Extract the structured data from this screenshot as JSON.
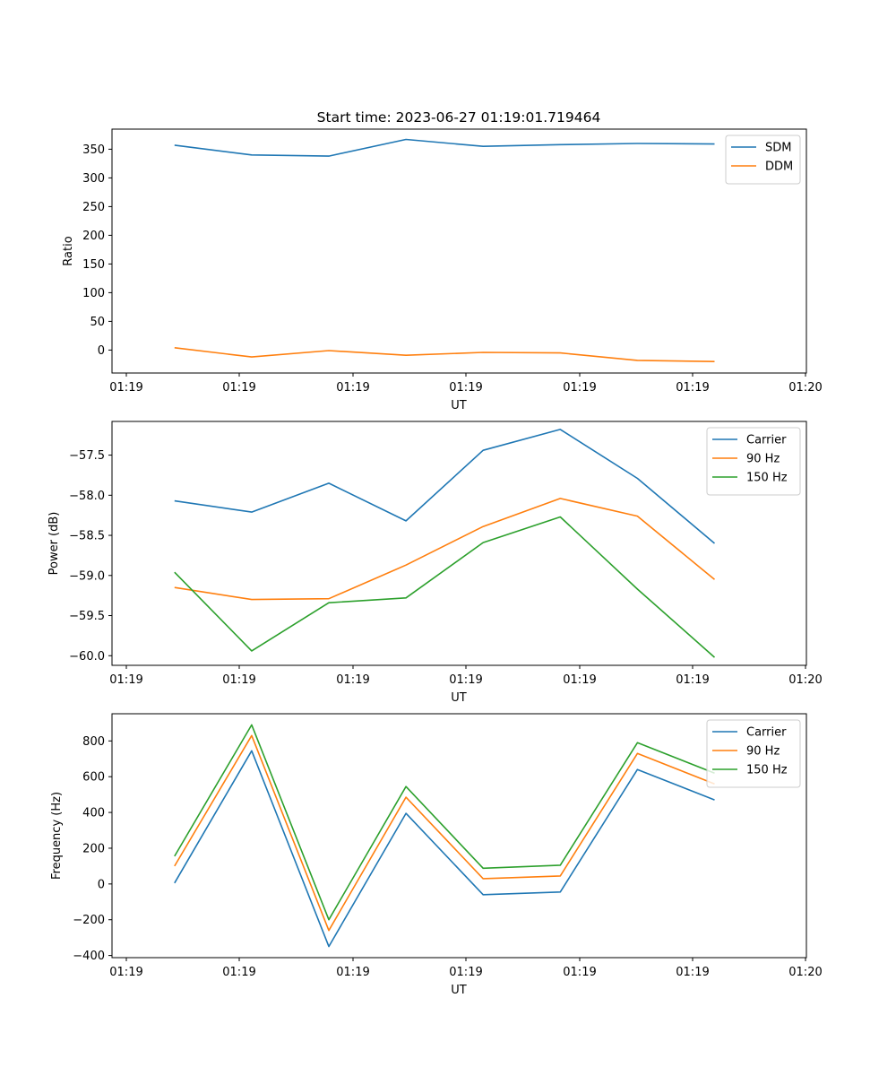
{
  "figure": {
    "title": "Start time: 2023-06-27 01:19:01.719464"
  },
  "chart_data": [
    {
      "type": "line",
      "title": "Start time: 2023-06-27 01:19:01.719464",
      "xlabel": "UT",
      "ylabel": "Ratio",
      "x_tick_labels": [
        "01:19",
        "01:19",
        "01:19",
        "01:19",
        "01:19",
        "01:19",
        "01:20"
      ],
      "x": [
        1,
        2,
        3,
        4,
        5,
        6,
        7,
        8
      ],
      "xlim": [
        0.19,
        9.19
      ],
      "ylim": [
        -40,
        385
      ],
      "yticks": [
        0,
        50,
        100,
        150,
        200,
        250,
        300,
        350
      ],
      "grid": false,
      "legend": "top-right",
      "series": [
        {
          "name": "SDM",
          "color": "#1f77b4",
          "values": [
            357,
            340,
            338,
            367,
            355,
            358,
            360,
            359
          ]
        },
        {
          "name": "DDM",
          "color": "#ff7f0e",
          "values": [
            4,
            -12,
            -1,
            -9,
            -4,
            -5,
            -18,
            -20
          ]
        }
      ]
    },
    {
      "type": "line",
      "title": "",
      "xlabel": "UT",
      "ylabel": "Power (dB)",
      "x_tick_labels": [
        "01:19",
        "01:19",
        "01:19",
        "01:19",
        "01:19",
        "01:19",
        "01:20"
      ],
      "x": [
        1,
        2,
        3,
        4,
        5,
        6,
        7,
        8
      ],
      "xlim": [
        0.19,
        9.19
      ],
      "ylim": [
        -60.12,
        -57.08
      ],
      "yticks": [
        -60.0,
        -59.5,
        -59.0,
        -58.5,
        -58.0,
        -57.5
      ],
      "ytick_labels": [
        "−60.0",
        "−59.5",
        "−59.0",
        "−58.5",
        "−58.0",
        "−57.5"
      ],
      "grid": false,
      "legend": "top-right",
      "series": [
        {
          "name": "Carrier",
          "color": "#1f77b4",
          "values": [
            -58.07,
            -58.21,
            -57.85,
            -58.32,
            -57.44,
            -57.18,
            -57.79,
            -58.6
          ]
        },
        {
          "name": "90 Hz",
          "color": "#ff7f0e",
          "values": [
            -59.15,
            -59.3,
            -59.29,
            -58.87,
            -58.39,
            -58.04,
            -58.26,
            -59.05
          ]
        },
        {
          "name": "150 Hz",
          "color": "#2ca02c",
          "values": [
            -58.96,
            -59.94,
            -59.34,
            -59.28,
            -58.59,
            -58.27,
            -59.17,
            -60.02
          ]
        }
      ]
    },
    {
      "type": "line",
      "title": "",
      "xlabel": "UT",
      "ylabel": "Frequency (Hz)",
      "x_tick_labels": [
        "01:19",
        "01:19",
        "01:19",
        "01:19",
        "01:19",
        "01:19",
        "01:20"
      ],
      "x": [
        1,
        2,
        3,
        4,
        5,
        6,
        7,
        8
      ],
      "xlim": [
        0.19,
        9.19
      ],
      "ylim": [
        -412,
        952
      ],
      "yticks": [
        -400,
        -200,
        0,
        200,
        400,
        600,
        800
      ],
      "ytick_labels": [
        "−400",
        "−200",
        "0",
        "200",
        "400",
        "600",
        "800"
      ],
      "grid": false,
      "legend": "top-right",
      "series": [
        {
          "name": "Carrier",
          "color": "#1f77b4",
          "values": [
            5,
            745,
            -350,
            395,
            -60,
            -45,
            640,
            470
          ]
        },
        {
          "name": "90 Hz",
          "color": "#ff7f0e",
          "values": [
            100,
            830,
            -260,
            485,
            30,
            45,
            730,
            560
          ]
        },
        {
          "name": "150 Hz",
          "color": "#2ca02c",
          "values": [
            155,
            890,
            -200,
            545,
            88,
            105,
            790,
            620
          ]
        }
      ]
    }
  ]
}
